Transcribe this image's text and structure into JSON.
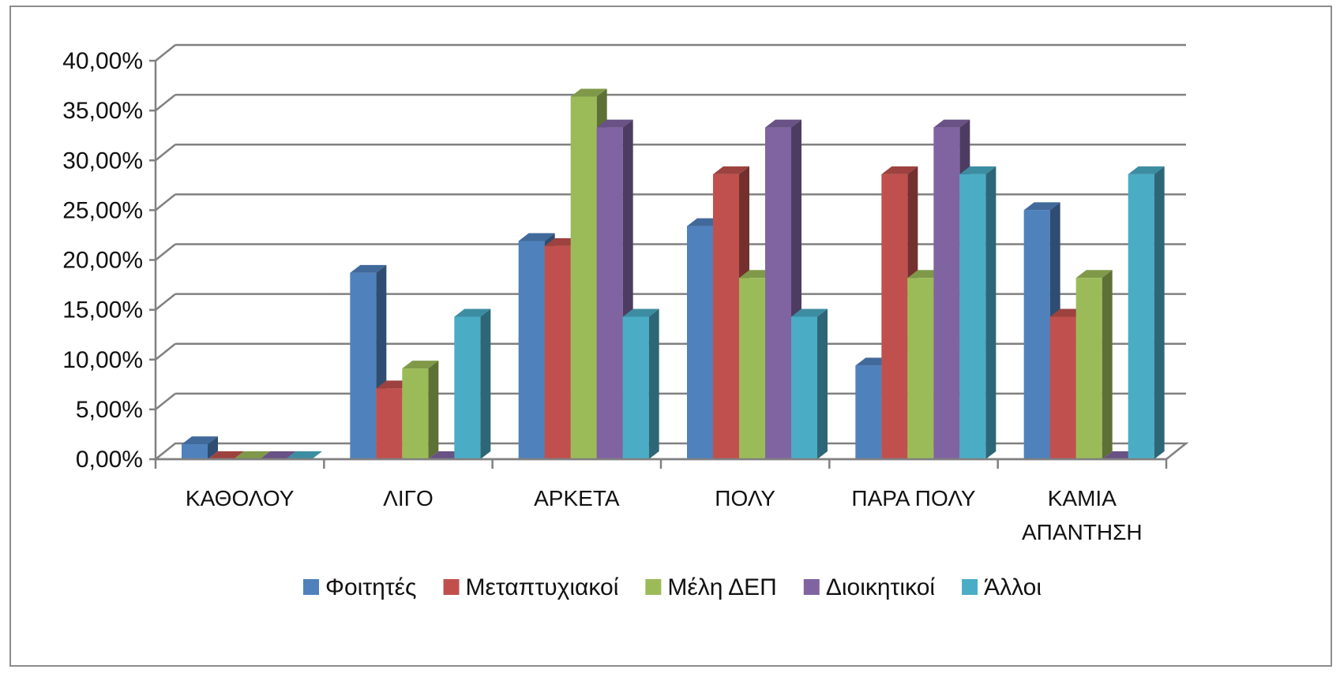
{
  "chart_data": {
    "type": "bar",
    "categories": [
      [
        "ΚΑΘΟΛΟΥ"
      ],
      [
        "ΛΙΓΟ"
      ],
      [
        "ΑΡΚΕΤΑ"
      ],
      [
        "ΠΟΛΥ"
      ],
      [
        "ΠΑΡΑ ΠΟΛΥ"
      ],
      [
        "ΚΑΜΙΑ",
        "ΑΠΑΝΤΗΣΗ"
      ]
    ],
    "series": [
      {
        "name": "Φοιτητές",
        "color": "#4F81BD",
        "values": [
          1.5,
          18.7,
          21.9,
          23.4,
          9.4,
          25.0
        ]
      },
      {
        "name": "Μεταπτυχιακοί",
        "color": "#C0504D",
        "values": [
          0,
          7.1,
          21.4,
          28.6,
          28.6,
          14.3
        ]
      },
      {
        "name": "Μέλη ΔΕΠ",
        "color": "#9BBB59",
        "values": [
          0,
          9.1,
          36.4,
          18.2,
          18.2,
          18.2
        ]
      },
      {
        "name": "Διοικητικοί",
        "color": "#8064A2",
        "values": [
          0,
          0,
          33.3,
          33.3,
          33.3,
          0
        ]
      },
      {
        "name": "Άλλοι",
        "color": "#4BACC6",
        "values": [
          0,
          14.3,
          14.3,
          14.3,
          28.6,
          28.6
        ]
      }
    ],
    "yticks": [
      "0,00%",
      "5,00%",
      "10,00%",
      "15,00%",
      "20,00%",
      "25,00%",
      "30,00%",
      "35,00%",
      "40,00%"
    ],
    "ylim": [
      0,
      40
    ],
    "grid": true,
    "legend": "bottom"
  }
}
